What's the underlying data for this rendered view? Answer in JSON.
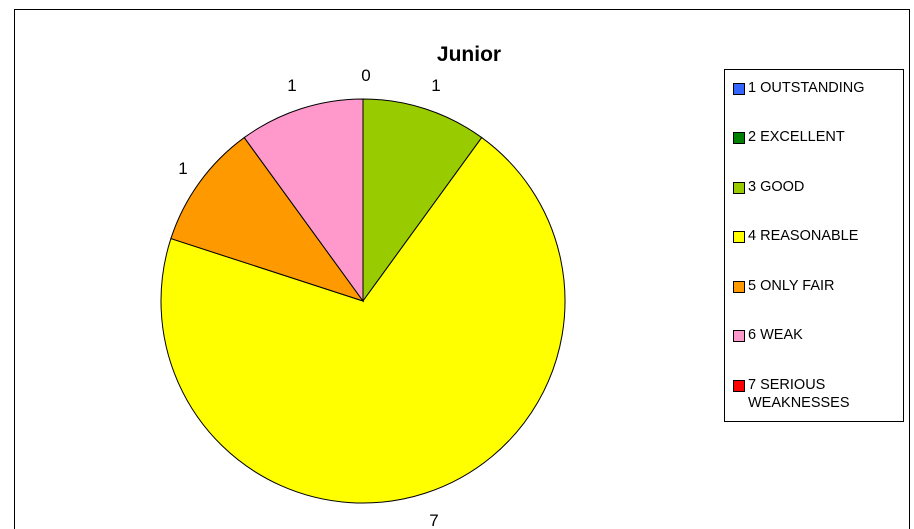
{
  "chart_data": {
    "type": "pie",
    "title": "Junior",
    "categories": [
      "1 OUTSTANDING",
      "2 EXCELLENT",
      "3 GOOD",
      "4 REASONABLE",
      "5 ONLY FAIR",
      "6 WEAK",
      "7 SERIOUS WEAKNESSES"
    ],
    "values": [
      0,
      0,
      1,
      7,
      1,
      1,
      0
    ],
    "colors": [
      "#3366FF",
      "#008000",
      "#99CC00",
      "#FFFF00",
      "#FF9900",
      "#FF99CC",
      "#FF0000"
    ],
    "data_labels": [
      "0",
      "",
      "1",
      "7",
      "1",
      "1",
      ""
    ],
    "legend_position": "right",
    "start_angle_deg": 0,
    "direction": "clockwise"
  }
}
